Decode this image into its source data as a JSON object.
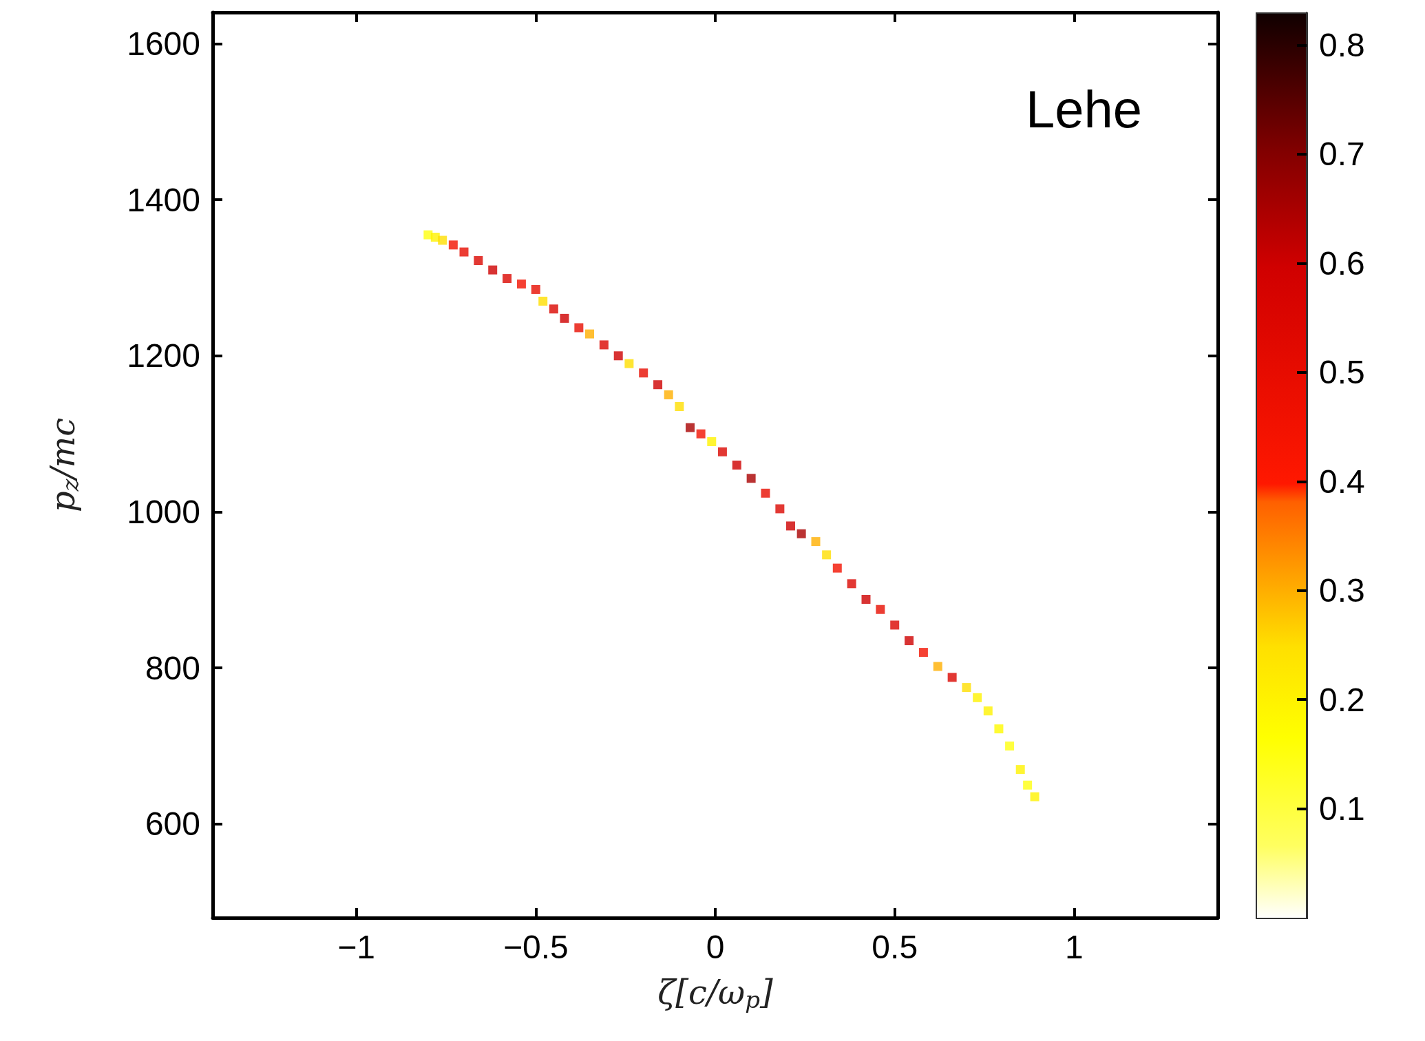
{
  "chart_data": {
    "type": "scatter",
    "xlabel": "ζ[c/ω$_{p}$]",
    "ylabel": "p$_{z}$/mc",
    "annotations": [
      "Lehe"
    ],
    "x": [
      -0.8,
      -0.78,
      -0.76,
      -0.73,
      -0.7,
      -0.66,
      -0.62,
      -0.58,
      -0.54,
      -0.5,
      -0.48,
      -0.45,
      -0.42,
      -0.38,
      -0.35,
      -0.31,
      -0.27,
      -0.24,
      -0.2,
      -0.16,
      -0.13,
      -0.1,
      -0.07,
      -0.04,
      -0.01,
      0.02,
      0.06,
      0.1,
      0.14,
      0.18,
      0.21,
      0.24,
      0.28,
      0.31,
      0.34,
      0.38,
      0.42,
      0.46,
      0.5,
      0.54,
      0.58,
      0.62,
      0.66,
      0.7,
      0.73,
      0.76,
      0.79,
      0.82,
      0.85,
      0.87,
      0.89
    ],
    "values": [
      1355,
      1352,
      1348,
      1342,
      1333,
      1322,
      1310,
      1299,
      1292,
      1285,
      1270,
      1260,
      1248,
      1236,
      1228,
      1214,
      1200,
      1190,
      1178,
      1163,
      1150,
      1135,
      1108,
      1100,
      1090,
      1077,
      1060,
      1043,
      1024,
      1004,
      982,
      972,
      962,
      945,
      928,
      908,
      888,
      875,
      855,
      835,
      820,
      802,
      788,
      775,
      762,
      745,
      722,
      700,
      670,
      650,
      635
    ],
    "cvalues": [
      0.15,
      0.2,
      0.25,
      0.45,
      0.5,
      0.55,
      0.6,
      0.55,
      0.45,
      0.5,
      0.25,
      0.55,
      0.6,
      0.5,
      0.3,
      0.55,
      0.6,
      0.25,
      0.5,
      0.6,
      0.3,
      0.25,
      0.65,
      0.45,
      0.2,
      0.55,
      0.6,
      0.65,
      0.5,
      0.55,
      0.6,
      0.65,
      0.3,
      0.25,
      0.45,
      0.55,
      0.6,
      0.5,
      0.55,
      0.6,
      0.45,
      0.3,
      0.55,
      0.25,
      0.2,
      0.2,
      0.18,
      0.15,
      0.2,
      0.15,
      0.2
    ],
    "marker": "square",
    "xlim": [
      -1.4,
      1.4
    ],
    "xticks": [
      {
        "value": -1,
        "label": "−1"
      },
      {
        "value": -0.5,
        "label": "−0.5"
      },
      0,
      0.5,
      1
    ],
    "ylim": [
      480,
      1640
    ],
    "yticks": [
      600,
      800,
      1000,
      1200,
      1400,
      1600
    ],
    "clim": [
      0,
      0.83
    ],
    "cticks": [
      0.1,
      0.2,
      0.3,
      0.4,
      0.5,
      0.6,
      0.7,
      0.8
    ],
    "grid": false
  }
}
